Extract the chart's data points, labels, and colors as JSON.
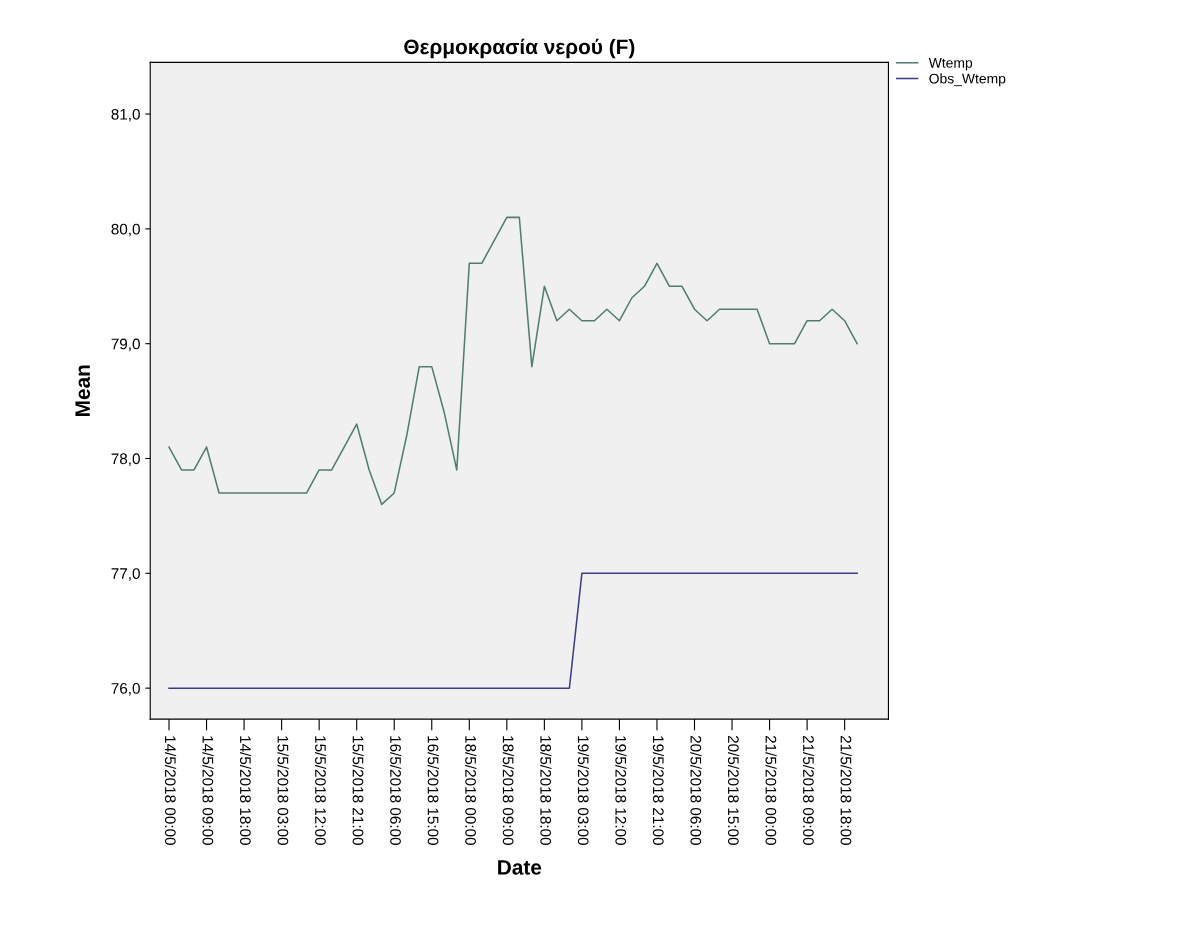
{
  "chart_data": {
    "type": "line",
    "title": "Θερμοκρασία νερού (F)",
    "xlabel": "Date",
    "ylabel": "Mean",
    "categories": [
      "14/5/2018 00:00",
      null,
      null,
      "14/5/2018 09:00",
      null,
      null,
      "14/5/2018 18:00",
      null,
      null,
      "15/5/2018 03:00",
      null,
      null,
      "15/5/2018 12:00",
      null,
      null,
      "15/5/2018 21:00",
      null,
      null,
      "16/5/2018 06:00",
      null,
      null,
      "16/5/2018 15:00",
      null,
      null,
      "18/5/2018 00:00",
      null,
      null,
      "18/5/2018 09:00",
      null,
      null,
      "18/5/2018 18:00",
      null,
      null,
      "19/5/2018 03:00",
      null,
      null,
      "19/5/2018 12:00",
      null,
      null,
      "19/5/2018 21:00",
      null,
      null,
      "20/5/2018 06:00",
      null,
      null,
      "20/5/2018 15:00",
      null,
      null,
      "21/5/2018 00:00",
      null,
      null,
      "21/5/2018 09:00",
      null,
      null,
      "21/5/2018 18:00",
      null
    ],
    "series": [
      {
        "name": "Wtemp",
        "color": "#4f7d72",
        "values": [
          78.1,
          77.9,
          77.9,
          78.1,
          77.7,
          77.7,
          77.7,
          77.7,
          77.7,
          77.7,
          77.7,
          77.7,
          77.9,
          77.9,
          78.1,
          78.3,
          77.9,
          77.6,
          77.7,
          78.2,
          78.8,
          78.8,
          78.4,
          77.9,
          79.7,
          79.7,
          79.9,
          80.1,
          80.1,
          78.8,
          79.5,
          79.2,
          79.3,
          79.2,
          79.2,
          79.3,
          79.2,
          79.4,
          79.5,
          79.7,
          79.5,
          79.5,
          79.3,
          79.2,
          79.3,
          79.3,
          79.3,
          79.3,
          79.0,
          79.0,
          79.0,
          79.2,
          79.2,
          79.3,
          79.2,
          79.0
        ]
      },
      {
        "name": "Obs_Wtemp",
        "color": "#3c3c8c",
        "values": [
          76,
          76,
          76,
          76,
          76,
          76,
          76,
          76,
          76,
          76,
          76,
          76,
          76,
          76,
          76,
          76,
          76,
          76,
          76,
          76,
          76,
          76,
          76,
          76,
          76,
          76,
          76,
          76,
          76,
          76,
          76,
          76,
          76,
          77,
          77,
          77,
          77,
          77,
          77,
          77,
          77,
          77,
          77,
          77,
          77,
          77,
          77,
          77,
          77,
          77,
          77,
          77,
          77,
          77,
          77,
          77
        ]
      }
    ],
    "ylim": [
      75.73,
      81.45
    ],
    "yticks": [
      {
        "value": 76,
        "label": "76,0"
      },
      {
        "value": 77,
        "label": "77,0"
      },
      {
        "value": 78,
        "label": "78,0"
      },
      {
        "value": 79,
        "label": "79,0"
      },
      {
        "value": 80,
        "label": "80,0"
      },
      {
        "value": 81,
        "label": "81,0"
      }
    ],
    "grid": false,
    "legend": "top right",
    "marker": "none",
    "line_style": "solid"
  }
}
